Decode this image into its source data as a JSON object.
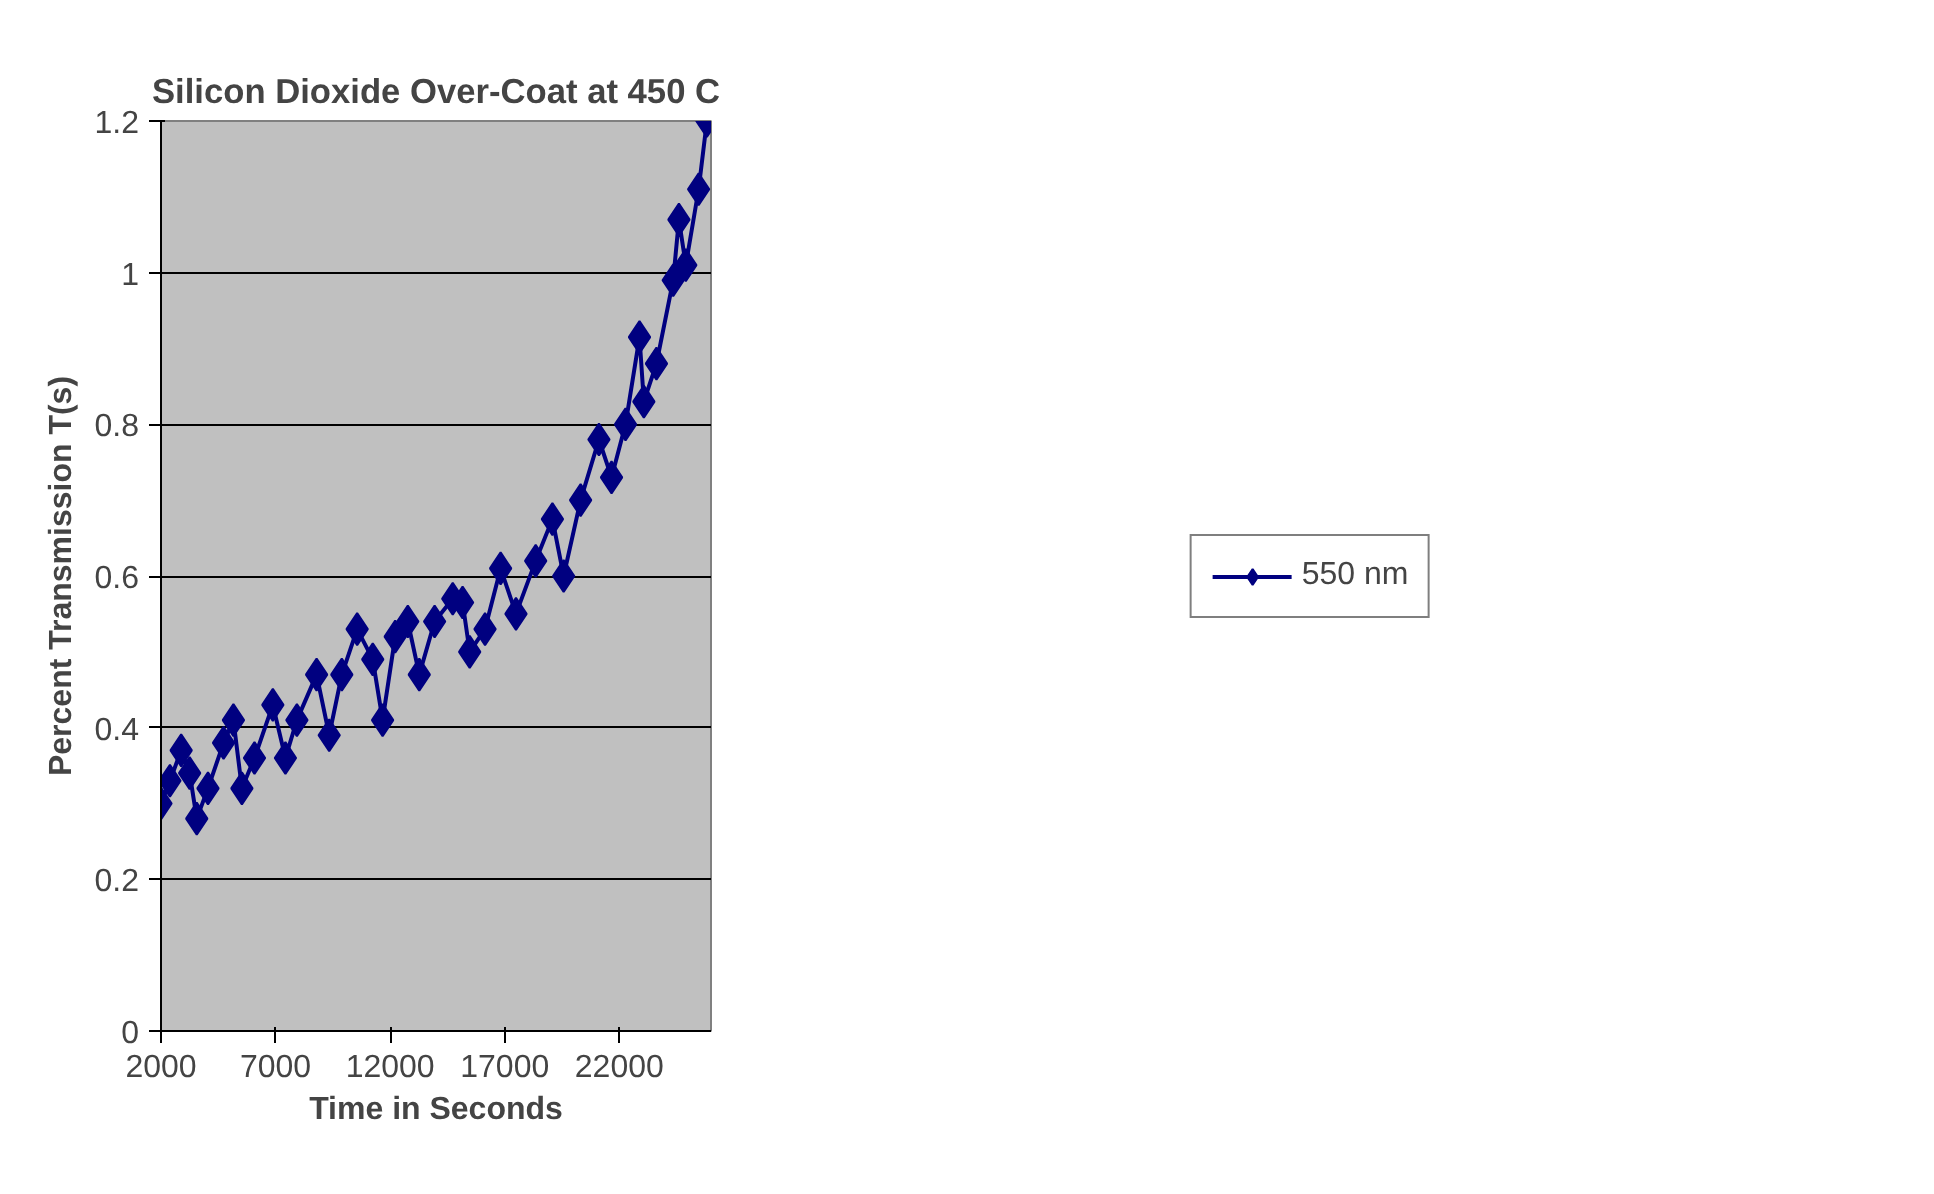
{
  "chart_data": {
    "type": "line",
    "title": "Silicon Dioxide Over-Coat at 450 C",
    "xlabel": "Time in Seconds",
    "ylabel": "Percent Transmission T(s)",
    "xlim": [
      2000,
      26000
    ],
    "xticks": [
      2000,
      7000,
      12000,
      17000,
      22000
    ],
    "ylim": [
      0,
      1.2
    ],
    "yticks": [
      0,
      0.2,
      0.4,
      0.6,
      0.8,
      1,
      1.2
    ],
    "grid": "y",
    "legend": "right",
    "marker": "diamond",
    "line_style": "solid",
    "series": [
      {
        "name": "550 nm",
        "color": "#000080",
        "x": [
          2000,
          2390,
          2880,
          3250,
          3560,
          4050,
          4730,
          5160,
          5530,
          6080,
          6880,
          7430,
          7930,
          8790,
          9340,
          9890,
          10560,
          11240,
          11670,
          12220,
          12770,
          13270,
          13940,
          14730,
          15160,
          15470,
          16140,
          16820,
          17490,
          18350,
          19080,
          19570,
          20310,
          21110,
          21660,
          22270,
          22880,
          23070,
          23620,
          24350,
          24600,
          24900,
          25460,
          25820
        ],
        "values": [
          0.3,
          0.33,
          0.37,
          0.34,
          0.28,
          0.32,
          0.38,
          0.41,
          0.32,
          0.36,
          0.43,
          0.36,
          0.41,
          0.47,
          0.39,
          0.47,
          0.53,
          0.49,
          0.41,
          0.52,
          0.54,
          0.47,
          0.54,
          0.57,
          0.565,
          0.5,
          0.53,
          0.61,
          0.55,
          0.62,
          0.675,
          0.6,
          0.7,
          0.78,
          0.73,
          0.8,
          0.915,
          0.83,
          0.88,
          0.99,
          1.07,
          1.01,
          1.11,
          1.2
        ]
      }
    ]
  }
}
